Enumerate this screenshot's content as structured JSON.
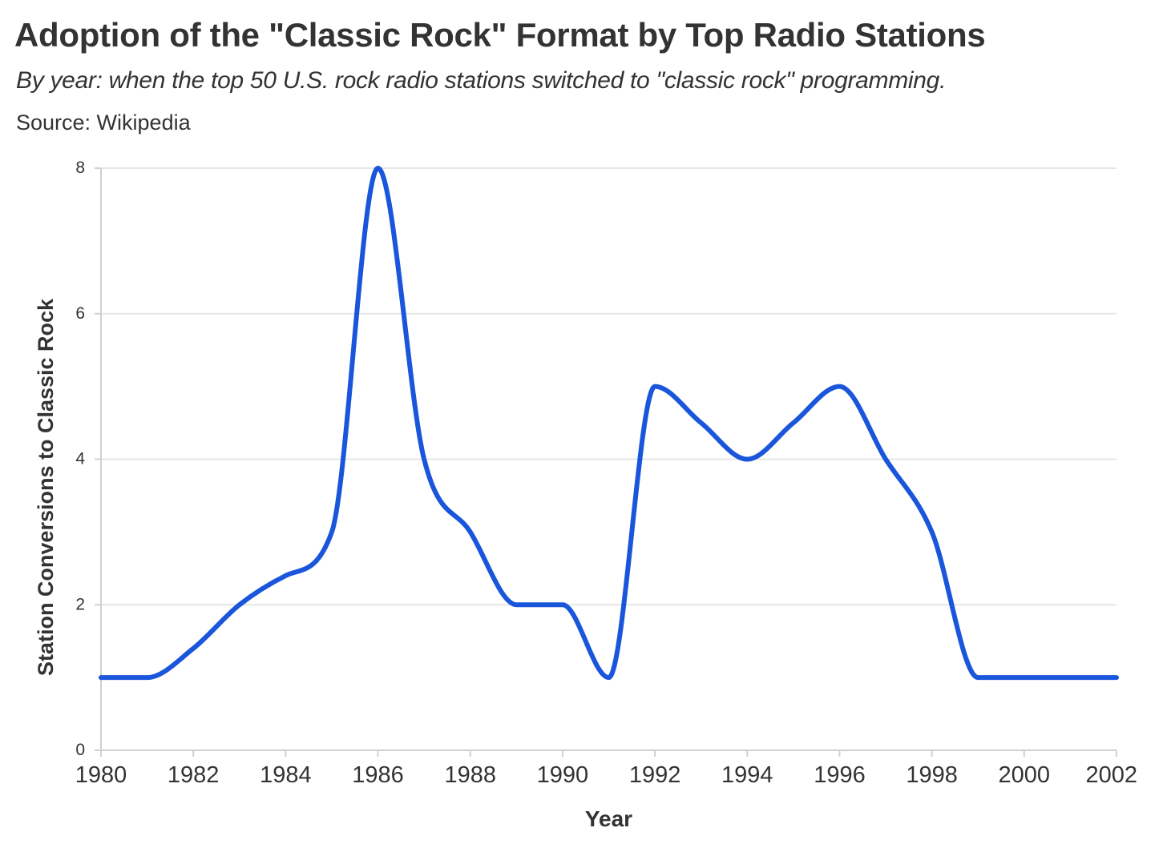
{
  "header": {
    "title": "Adoption of the \"Classic Rock\" Format by Top Radio Stations",
    "subtitle": "By year: when the top 50 U.S. rock radio stations switched to \"classic rock\" programming.",
    "source": "Source: Wikipedia"
  },
  "colors": {
    "line": "#1a56db",
    "grid": "#e6e6e6",
    "axis": "#d0d0d0",
    "text": "#333333"
  },
  "chart_data": {
    "type": "line",
    "title": "Adoption of the \"Classic Rock\" Format by Top Radio Stations",
    "subtitle": "By year: when the top 50 U.S. rock radio stations switched to \"classic rock\" programming.",
    "xlabel": "Year",
    "ylabel": "Station Conversions to Classic Rock",
    "xlim": [
      1980,
      2002
    ],
    "ylim": [
      0,
      8
    ],
    "x_ticks": [
      1980,
      1982,
      1984,
      1986,
      1988,
      1990,
      1992,
      1994,
      1996,
      1998,
      2000,
      2002
    ],
    "y_ticks": [
      0,
      2,
      4,
      6,
      8
    ],
    "grid": "horizontal",
    "smooth": true,
    "series": [
      {
        "x": [
          1980,
          1981,
          1982,
          1983,
          1984,
          1985,
          1986,
          1987,
          1988,
          1989,
          1990,
          1991,
          1992,
          1993,
          1994,
          1995,
          1996,
          1997,
          1998,
          1999,
          2000,
          2001,
          2002
        ],
        "values": [
          1,
          1,
          1.4,
          2,
          2.4,
          3,
          8,
          4,
          3,
          2,
          2,
          1,
          5,
          4.5,
          4,
          4.5,
          5,
          4,
          3,
          1,
          1,
          1,
          1
        ]
      }
    ]
  }
}
